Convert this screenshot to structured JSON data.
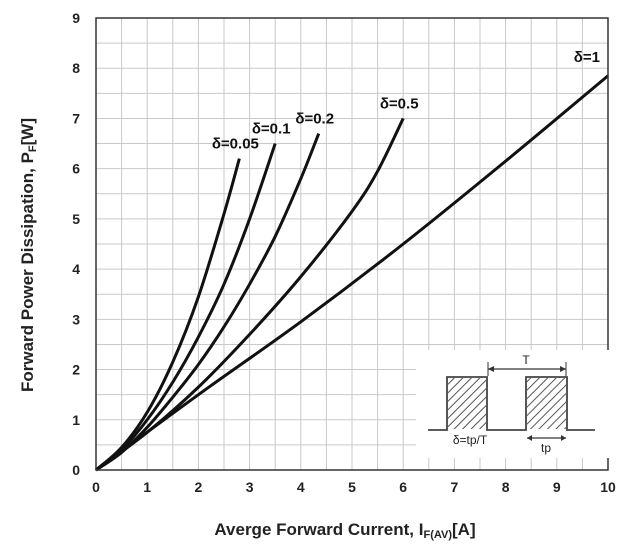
{
  "chart_data": {
    "type": "line",
    "xlabel": "Averge Forward Current, I",
    "xlabel_sub": "F(AV)",
    "xlabel_unit": "[A]",
    "ylabel": "Forward Power Dissipation, P",
    "ylabel_sub": "F",
    "ylabel_unit": "[W]",
    "xlim": [
      0,
      10
    ],
    "ylim": [
      0,
      9
    ],
    "xticks": [
      "0",
      "1",
      "2",
      "3",
      "4",
      "5",
      "6",
      "7",
      "8",
      "9",
      "10"
    ],
    "yticks": [
      "0",
      "1",
      "2",
      "3",
      "4",
      "5",
      "6",
      "7",
      "8",
      "9"
    ],
    "grid": true,
    "series": [
      {
        "name": "δ=0.05",
        "x": [
          0,
          0.5,
          1,
          1.5,
          2,
          2.5,
          2.8
        ],
        "y": [
          0,
          0.45,
          1.15,
          2.15,
          3.45,
          5.1,
          6.2
        ]
      },
      {
        "name": "δ=0.1",
        "x": [
          0,
          0.5,
          1,
          1.5,
          2,
          2.5,
          3,
          3.5
        ],
        "y": [
          0,
          0.4,
          1.0,
          1.75,
          2.65,
          3.7,
          5.0,
          6.5
        ]
      },
      {
        "name": "δ=0.2",
        "x": [
          0,
          0.5,
          1,
          1.5,
          2,
          2.5,
          3,
          3.5,
          4,
          4.35
        ],
        "y": [
          0,
          0.35,
          0.85,
          1.45,
          2.1,
          2.85,
          3.7,
          4.65,
          5.8,
          6.7
        ]
      },
      {
        "name": "δ=0.5",
        "x": [
          0,
          1,
          2,
          3,
          4,
          5,
          5.5,
          6
        ],
        "y": [
          0,
          0.75,
          1.65,
          2.7,
          3.85,
          5.15,
          5.95,
          7.0
        ]
      },
      {
        "name": "δ=1",
        "x": [
          0,
          2,
          4,
          6,
          8,
          10
        ],
        "y": [
          0,
          1.5,
          2.95,
          4.5,
          6.15,
          7.85
        ]
      }
    ],
    "inset": {
      "period_label": "T",
      "pulse_label": "tp",
      "duty_label": "δ=tp/T"
    }
  }
}
